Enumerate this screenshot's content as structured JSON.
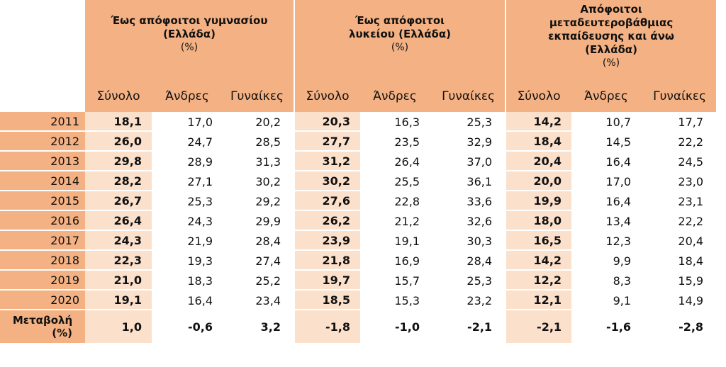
{
  "groups": [
    {
      "title": "Έως απόφοιτοι γυμνασίου (Ελλάδα)",
      "unit": "(%)"
    },
    {
      "title": "Έως απόφοιτοι λυκείου (Ελλάδα)",
      "unit": "(%)"
    },
    {
      "title": "Απόφοιτοι μεταδευτεροβάθμιας εκπαίδευσης και άνω (Ελλάδα)",
      "unit": "(%)"
    }
  ],
  "subheaders": [
    "Σύνολο",
    "Άνδρες",
    "Γυναίκες"
  ],
  "rows": [
    {
      "year": "2011",
      "v": [
        "18,1",
        "17,0",
        "20,2",
        "20,3",
        "16,3",
        "25,3",
        "14,2",
        "10,7",
        "17,7"
      ]
    },
    {
      "year": "2012",
      "v": [
        "26,0",
        "24,7",
        "28,5",
        "27,7",
        "23,5",
        "32,9",
        "18,4",
        "14,5",
        "22,2"
      ]
    },
    {
      "year": "2013",
      "v": [
        "29,8",
        "28,9",
        "31,3",
        "31,2",
        "26,4",
        "37,0",
        "20,4",
        "16,4",
        "24,5"
      ]
    },
    {
      "year": "2014",
      "v": [
        "28,2",
        "27,1",
        "30,2",
        "30,2",
        "25,5",
        "36,1",
        "20,0",
        "17,0",
        "23,0"
      ]
    },
    {
      "year": "2015",
      "v": [
        "26,7",
        "25,3",
        "29,2",
        "27,6",
        "22,8",
        "33,6",
        "19,9",
        "16,4",
        "23,1"
      ]
    },
    {
      "year": "2016",
      "v": [
        "26,4",
        "24,3",
        "29,9",
        "26,2",
        "21,2",
        "32,6",
        "18,0",
        "13,4",
        "22,2"
      ]
    },
    {
      "year": "2017",
      "v": [
        "24,3",
        "21,9",
        "28,4",
        "23,9",
        "19,1",
        "30,3",
        "16,5",
        "12,3",
        "20,4"
      ]
    },
    {
      "year": "2018",
      "v": [
        "22,3",
        "19,3",
        "27,4",
        "21,8",
        "16,9",
        "28,4",
        "14,2",
        "9,9",
        "18,4"
      ]
    },
    {
      "year": "2019",
      "v": [
        "21,0",
        "18,3",
        "25,2",
        "19,7",
        "15,7",
        "25,3",
        "12,2",
        "8,3",
        "15,9"
      ]
    },
    {
      "year": "2020",
      "v": [
        "19,1",
        "16,4",
        "23,4",
        "18,5",
        "15,3",
        "23,2",
        "12,1",
        "9,1",
        "14,9"
      ]
    }
  ],
  "change": {
    "label_line1": "Μεταβολή",
    "label_line2": "(%)",
    "v": [
      "1,0",
      "-0,6",
      "3,2",
      "-1,8",
      "-1,0",
      "-2,1",
      "-2,1",
      "-1,6",
      "-2,8"
    ]
  }
}
